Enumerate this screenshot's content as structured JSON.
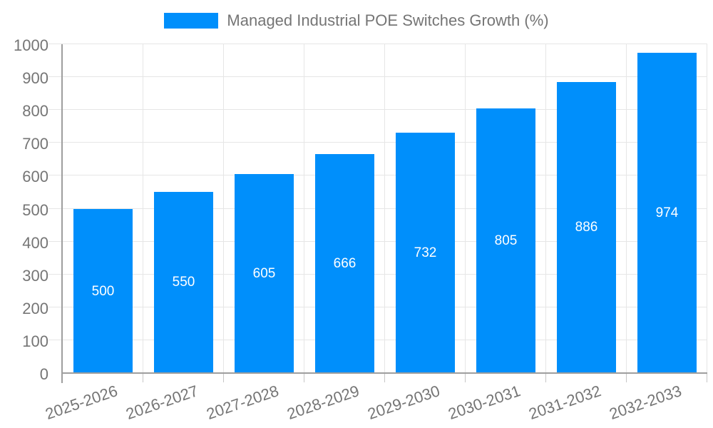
{
  "chart_data": {
    "type": "bar",
    "title": "Managed Industrial POE Switches Growth (%)",
    "series_name": "Managed Industrial POE Switches Growth (%)",
    "categories": [
      "2025-2026",
      "2026-2027",
      "2027-2028",
      "2028-2029",
      "2029-2030",
      "2030-2031",
      "2031-2032",
      "2032-2033"
    ],
    "values": [
      500,
      550,
      605,
      666,
      732,
      805,
      886,
      974
    ],
    "xlabel": "",
    "ylabel": "",
    "ylim": [
      0,
      1000
    ],
    "ytick_step": 100,
    "y_tick_labels": [
      "0",
      "100",
      "200",
      "300",
      "400",
      "500",
      "600",
      "700",
      "800",
      "900",
      "1000"
    ],
    "grid": true,
    "legend_position": "top",
    "colors": {
      "bar": "#008FFB",
      "value_label": "#ffffff",
      "axis_text": "#757575",
      "grid_line": "#e6e6e6",
      "axis_line": "#9e9e9e",
      "tick": "#c6c6c6",
      "background": "#ffffff"
    }
  }
}
